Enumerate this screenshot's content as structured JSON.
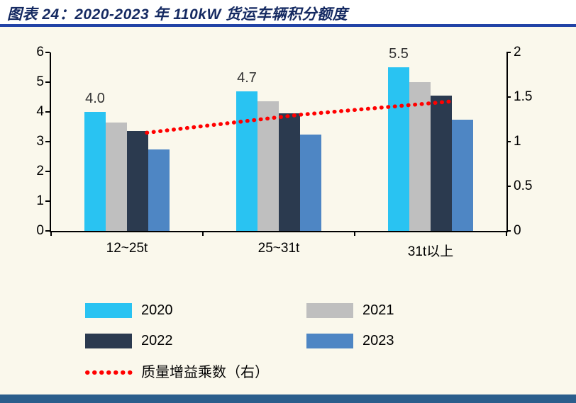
{
  "header": {
    "title": "图表 24：2020-2023 年 110kW 货运车辆积分额度"
  },
  "chart_data": {
    "type": "bar",
    "title": "2020-2023 年 110kW 货运车辆积分额度",
    "categories": [
      "12~25t",
      "25~31t",
      "31t以上"
    ],
    "series": [
      {
        "name": "2020",
        "color": "#29C3F2",
        "values": [
          4.0,
          4.7,
          5.5
        ],
        "labels": [
          "4.0",
          "4.7",
          "5.5"
        ]
      },
      {
        "name": "2021",
        "color": "#BFBFBF",
        "values": [
          3.65,
          4.35,
          5.0
        ]
      },
      {
        "name": "2022",
        "color": "#2B3A4F",
        "values": [
          3.35,
          3.95,
          4.55
        ]
      },
      {
        "name": "2023",
        "color": "#4E86C4",
        "values": [
          2.75,
          3.25,
          3.75
        ]
      }
    ],
    "line_series": {
      "name": "质量增益乘数（右）",
      "color": "#FF0000",
      "axis": "right",
      "values": [
        1.1,
        1.3,
        1.45
      ]
    },
    "left_axis": {
      "min": 0,
      "max": 6,
      "ticks": [
        0,
        1,
        2,
        3,
        4,
        5,
        6
      ]
    },
    "right_axis": {
      "min": 0,
      "max": 2,
      "ticks": [
        0,
        0.5,
        1,
        1.5,
        2
      ]
    },
    "legend_position": "bottom",
    "grid": false
  },
  "colors": {
    "panel_bg": "#FAF8EC",
    "title_color": "#152A62",
    "rule_color": "#2243A6",
    "footer_color": "#2B5E8C",
    "axis_color": "#000000",
    "bar_label_color": "#333333"
  }
}
